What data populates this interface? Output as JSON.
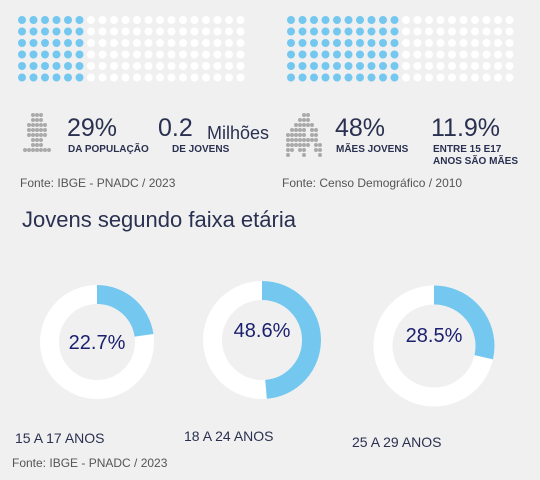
{
  "colors": {
    "filled": "#74c8ef",
    "empty": "#ffffff",
    "figure": "#aaaaaa",
    "text": "#2a3150",
    "value": "#1a1f6e"
  },
  "stats": [
    {
      "icon": "person-icon",
      "value": "29%",
      "label": "DA POPULAÇÃO",
      "waffle_filled_fraction": 0.29
    },
    {
      "value": "0.2",
      "unit": "Milhões",
      "label": "DE JOVENS"
    },
    {
      "icon": "mother-child-icon",
      "value": "48%",
      "label": "MÃES JOVENS",
      "waffle_filled_fraction": 0.48
    },
    {
      "value": "11.9%",
      "label_lines": [
        "ENTRE 15 E17",
        "ANOS SÃO MÃES"
      ]
    }
  ],
  "sources": {
    "left": "Fonte: IBGE - PNADC / 2023",
    "right": "Fonte: Censo Demográfico / 2010",
    "bottom": "Fonte: IBGE - PNADC / 2023"
  },
  "section_title": "Jovens segundo faixa etária",
  "chart_data": {
    "type": "pie",
    "style": "donut",
    "title": "Jovens segundo faixa etária",
    "categories": [
      "15 A 17 ANOS",
      "18 A 24 ANOS",
      "25 A 29 ANOS"
    ],
    "values": [
      22.7,
      48.6,
      28.5
    ],
    "value_labels": [
      "22.7%",
      "48.6%",
      "28.5%"
    ],
    "unit": "%"
  }
}
